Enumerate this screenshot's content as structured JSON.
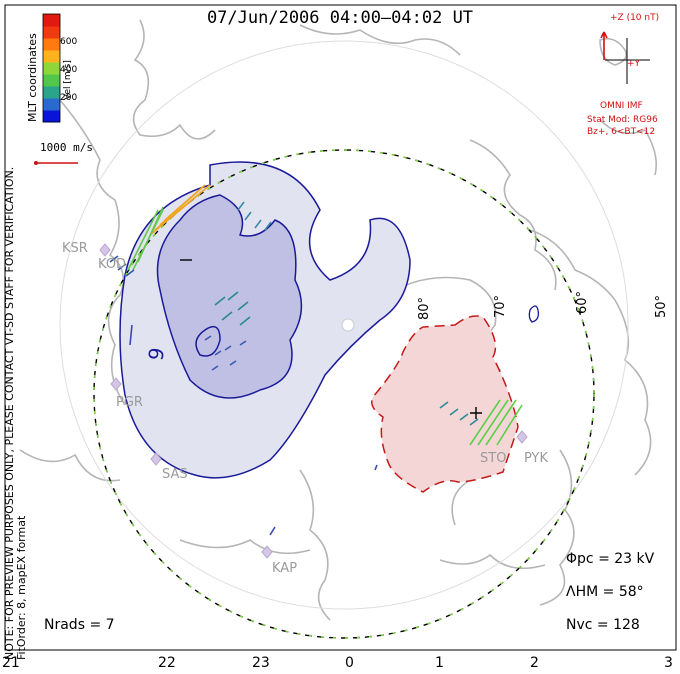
{
  "title": "07/Jun/2006 04:00–04:02 UT",
  "side_note": {
    "line1": "NOTE: FOR PREVIEW PURPOSES ONLY, PLEASE CONTACT VT-SD STAFF FOR VERIFICATION.",
    "line2": "FitOrder: 8, mapEX format"
  },
  "coords_label": "MLT coordinates",
  "colorbar": {
    "label": "Vel [m/s]",
    "ticks": [
      "600",
      "400",
      "200"
    ],
    "colors": [
      "#0a14d8",
      "#2a6ad0",
      "#2aa58a",
      "#52c84a",
      "#8fd63a",
      "#ffb21e",
      "#ff7a10",
      "#f03a10",
      "#e01a10"
    ]
  },
  "scale_vector_label": "1000 m/s",
  "imf": {
    "z_label": "+Z (10 nT)",
    "y_label": "+Y",
    "source": "OMNI IMF",
    "model_line1": "Stat Mod: RG96",
    "model_line2": "Bz+, 6<BT<12"
  },
  "latitude_labels": [
    "80°",
    "70°",
    "60°",
    "50°"
  ],
  "stations": [
    "KSR",
    "KOD",
    "PGR",
    "SAS",
    "KAP",
    "STO",
    "PYK"
  ],
  "contour_labels": {
    "neg_value": "9",
    "neg_sign": "–",
    "pos_sign": "+"
  },
  "stats": {
    "phi_pc_label": "Φpc",
    "phi_pc_value": "= 23 kV",
    "lambda_hm_label": "ΛHM",
    "lambda_hm_value": "= 58°",
    "n_vc_label": "Nvc",
    "n_vc_value": "= 128",
    "n_rads_label": "Nrads",
    "n_rads_value": "= 7"
  },
  "mlt_axis": [
    "21",
    "22",
    "23",
    "0",
    "1",
    "2",
    "3"
  ]
}
